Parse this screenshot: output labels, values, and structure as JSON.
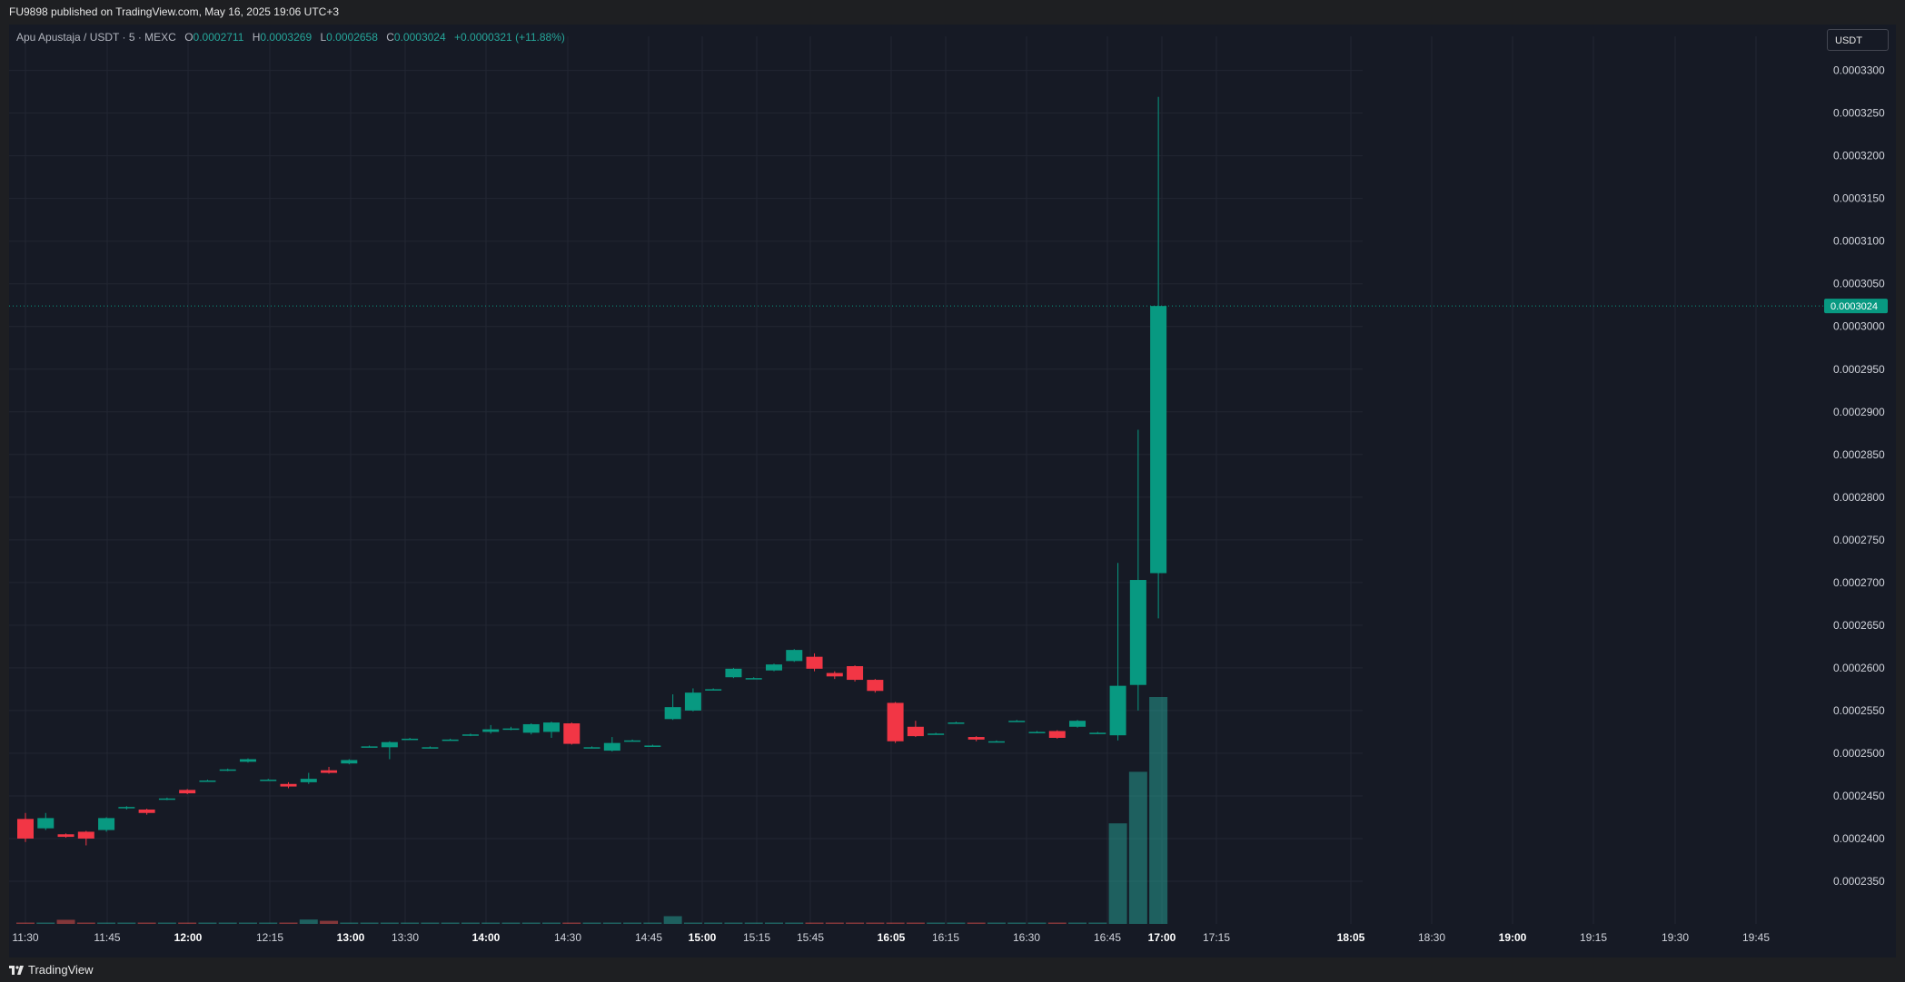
{
  "header": {
    "published": "FU9898 published on TradingView.com, May 16, 2025 19:06 UTC+3"
  },
  "legend": {
    "symbol": "Apu Apustaja / USDT · 5 · MEXC",
    "o_label": "O",
    "o_value": "0.0002711",
    "h_label": "H",
    "h_value": "0.0003269",
    "l_label": "L",
    "l_value": "0.0002658",
    "c_label": "C",
    "c_value": "0.0003024",
    "change": "+0.0000321 (+11.88%)"
  },
  "currency_button": "USDT",
  "footer": {
    "brand": "TradingView"
  },
  "colors": {
    "up": "#089981",
    "down": "#f23645",
    "background": "#161a25",
    "grid": "#222632"
  },
  "chart_data": {
    "type": "candlestick",
    "price_axis": {
      "ticks": [
        "0.0003300",
        "0.0003250",
        "0.0003200",
        "0.0003150",
        "0.0003100",
        "0.0003050",
        "0.0003000",
        "0.0002950",
        "0.0002900",
        "0.0002850",
        "0.0002800",
        "0.0002750",
        "0.0002700",
        "0.0002650",
        "0.0002600",
        "0.0002550",
        "0.0002500",
        "0.0002450",
        "0.0002400",
        "0.0002350"
      ],
      "ylim": [
        0.00023,
        0.000334
      ],
      "last_price": "0.0003024"
    },
    "time_axis": {
      "labels": [
        "11:30",
        "11:45",
        "12:00",
        "12:15",
        "13:00",
        "13:30",
        "14:00",
        "14:30",
        "14:45",
        "15:00",
        "15:15",
        "15:45",
        "16:05",
        "16:15",
        "16:30",
        "16:45",
        "17:00",
        "17:15",
        "18:05",
        "18:30",
        "19:00",
        "19:15",
        "19:30",
        "19:45"
      ],
      "bold": [
        "12:00",
        "13:00",
        "14:00",
        "15:00",
        "16:05",
        "17:00",
        "18:05",
        "19:00"
      ]
    },
    "candles": [
      {
        "o": 0.0002423,
        "h": 0.000243,
        "l": 0.0002396,
        "c": 0.00024
      },
      {
        "o": 0.0002412,
        "h": 0.000243,
        "l": 0.000241,
        "c": 0.0002424
      },
      {
        "o": 0.0002405,
        "h": 0.0002406,
        "l": 0.0002401,
        "c": 0.0002402
      },
      {
        "o": 0.0002408,
        "h": 0.0002409,
        "l": 0.0002392,
        "c": 0.00024
      },
      {
        "o": 0.000241,
        "h": 0.0002425,
        "l": 0.0002408,
        "c": 0.0002424
      },
      {
        "o": 0.0002436,
        "h": 0.0002438,
        "l": 0.0002434,
        "c": 0.0002437
      },
      {
        "o": 0.0002434,
        "h": 0.0002435,
        "l": 0.0002428,
        "c": 0.000243
      },
      {
        "o": 0.0002446,
        "h": 0.0002448,
        "l": 0.0002445,
        "c": 0.0002447
      },
      {
        "o": 0.0002457,
        "h": 0.0002458,
        "l": 0.0002452,
        "c": 0.0002453
      },
      {
        "o": 0.0002468,
        "h": 0.0002469,
        "l": 0.0002467,
        "c": 0.0002468
      },
      {
        "o": 0.000248,
        "h": 0.0002482,
        "l": 0.0002479,
        "c": 0.0002481
      },
      {
        "o": 0.000249,
        "h": 0.0002494,
        "l": 0.0002489,
        "c": 0.0002493
      },
      {
        "o": 0.0002469,
        "h": 0.000247,
        "l": 0.0002468,
        "c": 0.0002469
      },
      {
        "o": 0.0002464,
        "h": 0.0002466,
        "l": 0.0002459,
        "c": 0.0002461
      },
      {
        "o": 0.0002466,
        "h": 0.0002477,
        "l": 0.0002464,
        "c": 0.000247
      },
      {
        "o": 0.000248,
        "h": 0.0002484,
        "l": 0.0002476,
        "c": 0.0002477
      },
      {
        "o": 0.0002488,
        "h": 0.0002493,
        "l": 0.0002487,
        "c": 0.0002492
      },
      {
        "o": 0.0002508,
        "h": 0.0002509,
        "l": 0.0002507,
        "c": 0.0002508
      },
      {
        "o": 0.0002507,
        "h": 0.0002514,
        "l": 0.0002493,
        "c": 0.0002513
      },
      {
        "o": 0.0002517,
        "h": 0.0002518,
        "l": 0.0002516,
        "c": 0.0002517
      },
      {
        "o": 0.0002507,
        "h": 0.0002508,
        "l": 0.0002506,
        "c": 0.0002507
      },
      {
        "o": 0.0002516,
        "h": 0.0002517,
        "l": 0.0002515,
        "c": 0.0002516
      },
      {
        "o": 0.0002521,
        "h": 0.0002523,
        "l": 0.000252,
        "c": 0.0002522
      },
      {
        "o": 0.0002525,
        "h": 0.0002533,
        "l": 0.0002523,
        "c": 0.0002528
      },
      {
        "o": 0.0002528,
        "h": 0.0002531,
        "l": 0.0002527,
        "c": 0.0002529
      },
      {
        "o": 0.0002524,
        "h": 0.0002535,
        "l": 0.0002522,
        "c": 0.0002534
      },
      {
        "o": 0.0002525,
        "h": 0.0002537,
        "l": 0.0002518,
        "c": 0.0002536
      },
      {
        "o": 0.0002535,
        "h": 0.0002536,
        "l": 0.000251,
        "c": 0.0002511
      },
      {
        "o": 0.0002507,
        "h": 0.0002508,
        "l": 0.0002506,
        "c": 0.0002507
      },
      {
        "o": 0.0002503,
        "h": 0.0002519,
        "l": 0.0002502,
        "c": 0.0002512
      },
      {
        "o": 0.0002515,
        "h": 0.0002516,
        "l": 0.0002514,
        "c": 0.0002515
      },
      {
        "o": 0.0002509,
        "h": 0.000251,
        "l": 0.0002508,
        "c": 0.0002509
      },
      {
        "o": 0.000254,
        "h": 0.0002569,
        "l": 0.0002539,
        "c": 0.0002554
      },
      {
        "o": 0.000255,
        "h": 0.0002576,
        "l": 0.0002549,
        "c": 0.0002571
      },
      {
        "o": 0.0002575,
        "h": 0.0002576,
        "l": 0.0002574,
        "c": 0.0002575
      },
      {
        "o": 0.0002589,
        "h": 0.00026,
        "l": 0.0002588,
        "c": 0.0002599
      },
      {
        "o": 0.0002588,
        "h": 0.0002589,
        "l": 0.0002587,
        "c": 0.0002588
      },
      {
        "o": 0.0002597,
        "h": 0.0002605,
        "l": 0.0002596,
        "c": 0.0002604
      },
      {
        "o": 0.0002608,
        "h": 0.0002622,
        "l": 0.0002607,
        "c": 0.0002621
      },
      {
        "o": 0.0002613,
        "h": 0.0002617,
        "l": 0.0002596,
        "c": 0.0002599
      },
      {
        "o": 0.0002594,
        "h": 0.0002596,
        "l": 0.0002587,
        "c": 0.000259
      },
      {
        "o": 0.0002602,
        "h": 0.0002603,
        "l": 0.0002584,
        "c": 0.0002586
      },
      {
        "o": 0.0002586,
        "h": 0.0002587,
        "l": 0.0002571,
        "c": 0.0002573
      },
      {
        "o": 0.0002559,
        "h": 0.000256,
        "l": 0.0002512,
        "c": 0.0002514
      },
      {
        "o": 0.0002531,
        "h": 0.0002538,
        "l": 0.0002519,
        "c": 0.000252
      },
      {
        "o": 0.0002523,
        "h": 0.0002524,
        "l": 0.0002522,
        "c": 0.0002523
      },
      {
        "o": 0.0002536,
        "h": 0.0002537,
        "l": 0.0002535,
        "c": 0.0002536
      },
      {
        "o": 0.0002519,
        "h": 0.000252,
        "l": 0.0002514,
        "c": 0.0002516
      },
      {
        "o": 0.0002514,
        "h": 0.0002515,
        "l": 0.0002513,
        "c": 0.0002514
      },
      {
        "o": 0.0002538,
        "h": 0.0002539,
        "l": 0.0002537,
        "c": 0.0002538
      },
      {
        "o": 0.0002525,
        "h": 0.0002526,
        "l": 0.0002524,
        "c": 0.0002525
      },
      {
        "o": 0.0002526,
        "h": 0.0002527,
        "l": 0.0002517,
        "c": 0.0002518
      },
      {
        "o": 0.0002531,
        "h": 0.0002539,
        "l": 0.000253,
        "c": 0.0002538
      },
      {
        "o": 0.0002524,
        "h": 0.0002525,
        "l": 0.0002523,
        "c": 0.0002524
      },
      {
        "o": 0.0002521,
        "h": 0.0002723,
        "l": 0.0002515,
        "c": 0.0002579
      },
      {
        "o": 0.000258,
        "h": 0.0002879,
        "l": 0.000255,
        "c": 0.0002703
      },
      {
        "o": 0.0002711,
        "h": 0.0003269,
        "l": 0.0002658,
        "c": 0.0003024
      }
    ],
    "volume": [
      0.4,
      0.3,
      1.6,
      0.4,
      0.2,
      0.2,
      0.2,
      0.2,
      0.2,
      0.2,
      0.2,
      0.2,
      0.4,
      0.3,
      1.7,
      1.2,
      0.2,
      0.2,
      0.2,
      0.2,
      0.2,
      0.2,
      0.2,
      0.3,
      0.2,
      0.3,
      0.3,
      0.3,
      0.2,
      0.2,
      0.2,
      0.2,
      3.0,
      0.2,
      0.2,
      0.2,
      0.2,
      0.3,
      0.3,
      0.2,
      0.2,
      0.3,
      0.2,
      0.2,
      0.2,
      0.2,
      0.2,
      0.2,
      0.2,
      0.2,
      0.2,
      0.2,
      0.2,
      0.2,
      39,
      59,
      88
    ]
  }
}
